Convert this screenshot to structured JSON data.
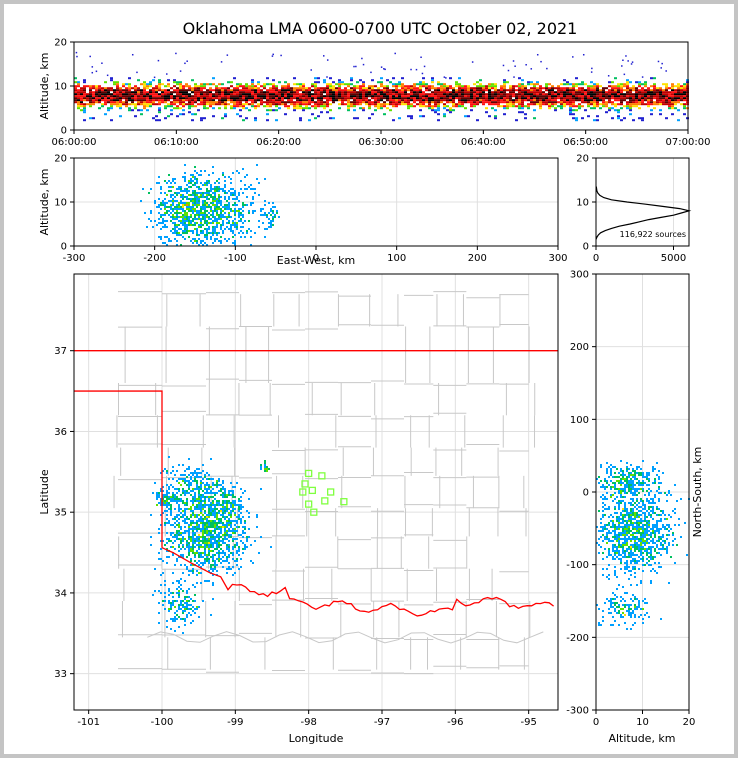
{
  "title": "Oklahoma LMA 0600-0700 UTC October 02, 2021",
  "colors": {
    "density": [
      "#2020d0",
      "#00a0ff",
      "#00c060",
      "#60e000",
      "#ffe000",
      "#ff8000",
      "#ff1010",
      "#c00000",
      "#600000",
      "#000000",
      "#ffffff"
    ],
    "border": "#ff0000",
    "county": "#c8c8c8",
    "stations": "#80ff40",
    "grid": "#e0e0e0"
  },
  "chart_data": [
    {
      "id": "time-height",
      "type": "heatmap",
      "x_label": "",
      "y_label": "Altitude, km",
      "x_ticks": [
        "06:00:00",
        "06:10:00",
        "06:20:00",
        "06:30:00",
        "06:40:00",
        "06:50:00",
        "07:00:00"
      ],
      "y_ticks": [
        "0",
        "10",
        "20"
      ],
      "ylim": [
        0,
        20
      ],
      "xlim_minutes": [
        0,
        60
      ],
      "band_km": [
        2,
        12
      ],
      "peak_km": 8
    },
    {
      "id": "east-west-altitude",
      "type": "heatmap",
      "x_label": "East-West, km",
      "y_label": "Altitude, km",
      "x_ticks": [
        "-300",
        "-200",
        "-100",
        "0",
        "100",
        "200",
        "300"
      ],
      "y_ticks": [
        "0",
        "10",
        "20"
      ],
      "xlim": [
        -300,
        300
      ],
      "ylim": [
        0,
        20
      ],
      "blobs": [
        {
          "x": -135,
          "y": 8.5,
          "dx": 30,
          "dy": 4,
          "n": 900
        },
        {
          "x": -165,
          "y": 7,
          "dx": 15,
          "dy": 4,
          "n": 260
        },
        {
          "x": -57,
          "y": 7.5,
          "dx": 5,
          "dy": 1.5,
          "n": 40
        }
      ]
    },
    {
      "id": "altitude-histogram",
      "type": "line",
      "x_ticks": [
        "0",
        "5000"
      ],
      "y_ticks": [
        "0",
        "10",
        "20"
      ],
      "xlim": [
        0,
        6000
      ],
      "ylim": [
        0,
        20
      ],
      "x": [
        0,
        60,
        150,
        300,
        600,
        1000,
        1500,
        2200,
        2800,
        3400,
        4200,
        5000,
        5500,
        6000,
        5400,
        4300,
        3200,
        2000,
        1000,
        500,
        250,
        120,
        60,
        40,
        20
      ],
      "y": [
        1.5,
        2,
        2.5,
        3,
        3.5,
        4,
        4.5,
        5,
        5.5,
        6,
        6.5,
        7,
        7.5,
        8,
        8.5,
        9,
        9.5,
        10,
        10.5,
        11,
        11.5,
        12,
        12.5,
        13,
        13.5
      ],
      "annotation": "116,922 sources"
    },
    {
      "id": "plan-view",
      "type": "heatmap",
      "x_label": "Longitude",
      "y_label": "Latitude",
      "x_ticks": [
        "-101",
        "-100",
        "-99",
        "-98",
        "-97",
        "-96",
        "-95"
      ],
      "y_ticks": [
        "33",
        "34",
        "35",
        "36",
        "37"
      ],
      "xlim": [
        -101.2,
        -94.6
      ],
      "ylim": [
        32.55,
        37.95
      ],
      "blobs": [
        {
          "x": -99.4,
          "y": 34.75,
          "dx": 0.28,
          "dy": 0.25,
          "n": 1100
        },
        {
          "x": -99.55,
          "y": 35.3,
          "dx": 0.2,
          "dy": 0.15,
          "n": 260
        },
        {
          "x": -99.95,
          "y": 35.15,
          "dx": 0.08,
          "dy": 0.05,
          "n": 70
        },
        {
          "x": -99.1,
          "y": 35.1,
          "dx": 0.12,
          "dy": 0.12,
          "n": 120
        },
        {
          "x": -99.75,
          "y": 33.85,
          "dx": 0.15,
          "dy": 0.13,
          "n": 160
        },
        {
          "x": -98.6,
          "y": 35.55,
          "dx": 0.04,
          "dy": 0.04,
          "n": 25
        }
      ],
      "stations": [
        [
          -98.0,
          35.48
        ],
        [
          -98.05,
          35.35
        ],
        [
          -97.82,
          35.45
        ],
        [
          -98.08,
          35.25
        ],
        [
          -97.95,
          35.27
        ],
        [
          -97.7,
          35.25
        ],
        [
          -98.0,
          35.1
        ],
        [
          -97.78,
          35.14
        ],
        [
          -97.52,
          35.13
        ],
        [
          -97.93,
          35.0
        ]
      ]
    },
    {
      "id": "altitude-north-south",
      "type": "heatmap",
      "x_label": "Altitude, km",
      "y_label": "North-South, km",
      "x_ticks": [
        "0",
        "10",
        "20"
      ],
      "y_ticks": [
        "-300",
        "-200",
        "-100",
        "0",
        "100",
        "200",
        "300"
      ],
      "xlim": [
        0,
        20
      ],
      "ylim": [
        -300,
        300
      ],
      "blobs": [
        {
          "x": 8.5,
          "y": -55,
          "dx": 4,
          "dy": 28,
          "n": 950
        },
        {
          "x": 7,
          "y": 15,
          "dx": 3.5,
          "dy": 12,
          "n": 280
        },
        {
          "x": 6.5,
          "y": -160,
          "dx": 3,
          "dy": 12,
          "n": 140
        }
      ]
    }
  ]
}
